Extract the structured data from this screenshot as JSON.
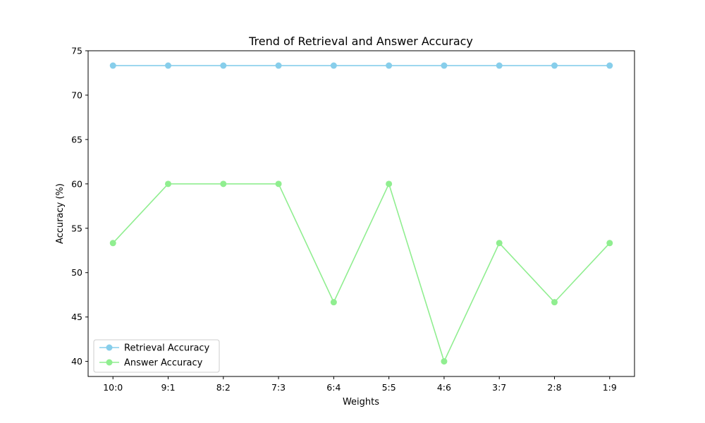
{
  "chart_data": {
    "type": "line",
    "title": "Trend of Retrieval and Answer Accuracy",
    "xlabel": "Weights",
    "ylabel": "Accuracy (%)",
    "categories": [
      "10:0",
      "9:1",
      "8:2",
      "7:3",
      "6:4",
      "5:5",
      "4:6",
      "3:7",
      "2:8",
      "1:9"
    ],
    "ylim": [
      38.3,
      75
    ],
    "yticks": [
      40,
      45,
      50,
      55,
      60,
      65,
      70,
      75
    ],
    "grid": false,
    "legend_position": "lower-left",
    "series": [
      {
        "name": "Retrieval Accuracy",
        "color": "#87ceeb",
        "marker": "circle",
        "values": [
          73.33,
          73.33,
          73.33,
          73.33,
          73.33,
          73.33,
          73.33,
          73.33,
          73.33,
          73.33
        ]
      },
      {
        "name": "Answer Accuracy",
        "color": "#90ee90",
        "marker": "circle",
        "values": [
          53.33,
          60.0,
          60.0,
          60.0,
          46.67,
          60.0,
          40.0,
          53.33,
          46.67,
          53.33
        ]
      }
    ]
  }
}
